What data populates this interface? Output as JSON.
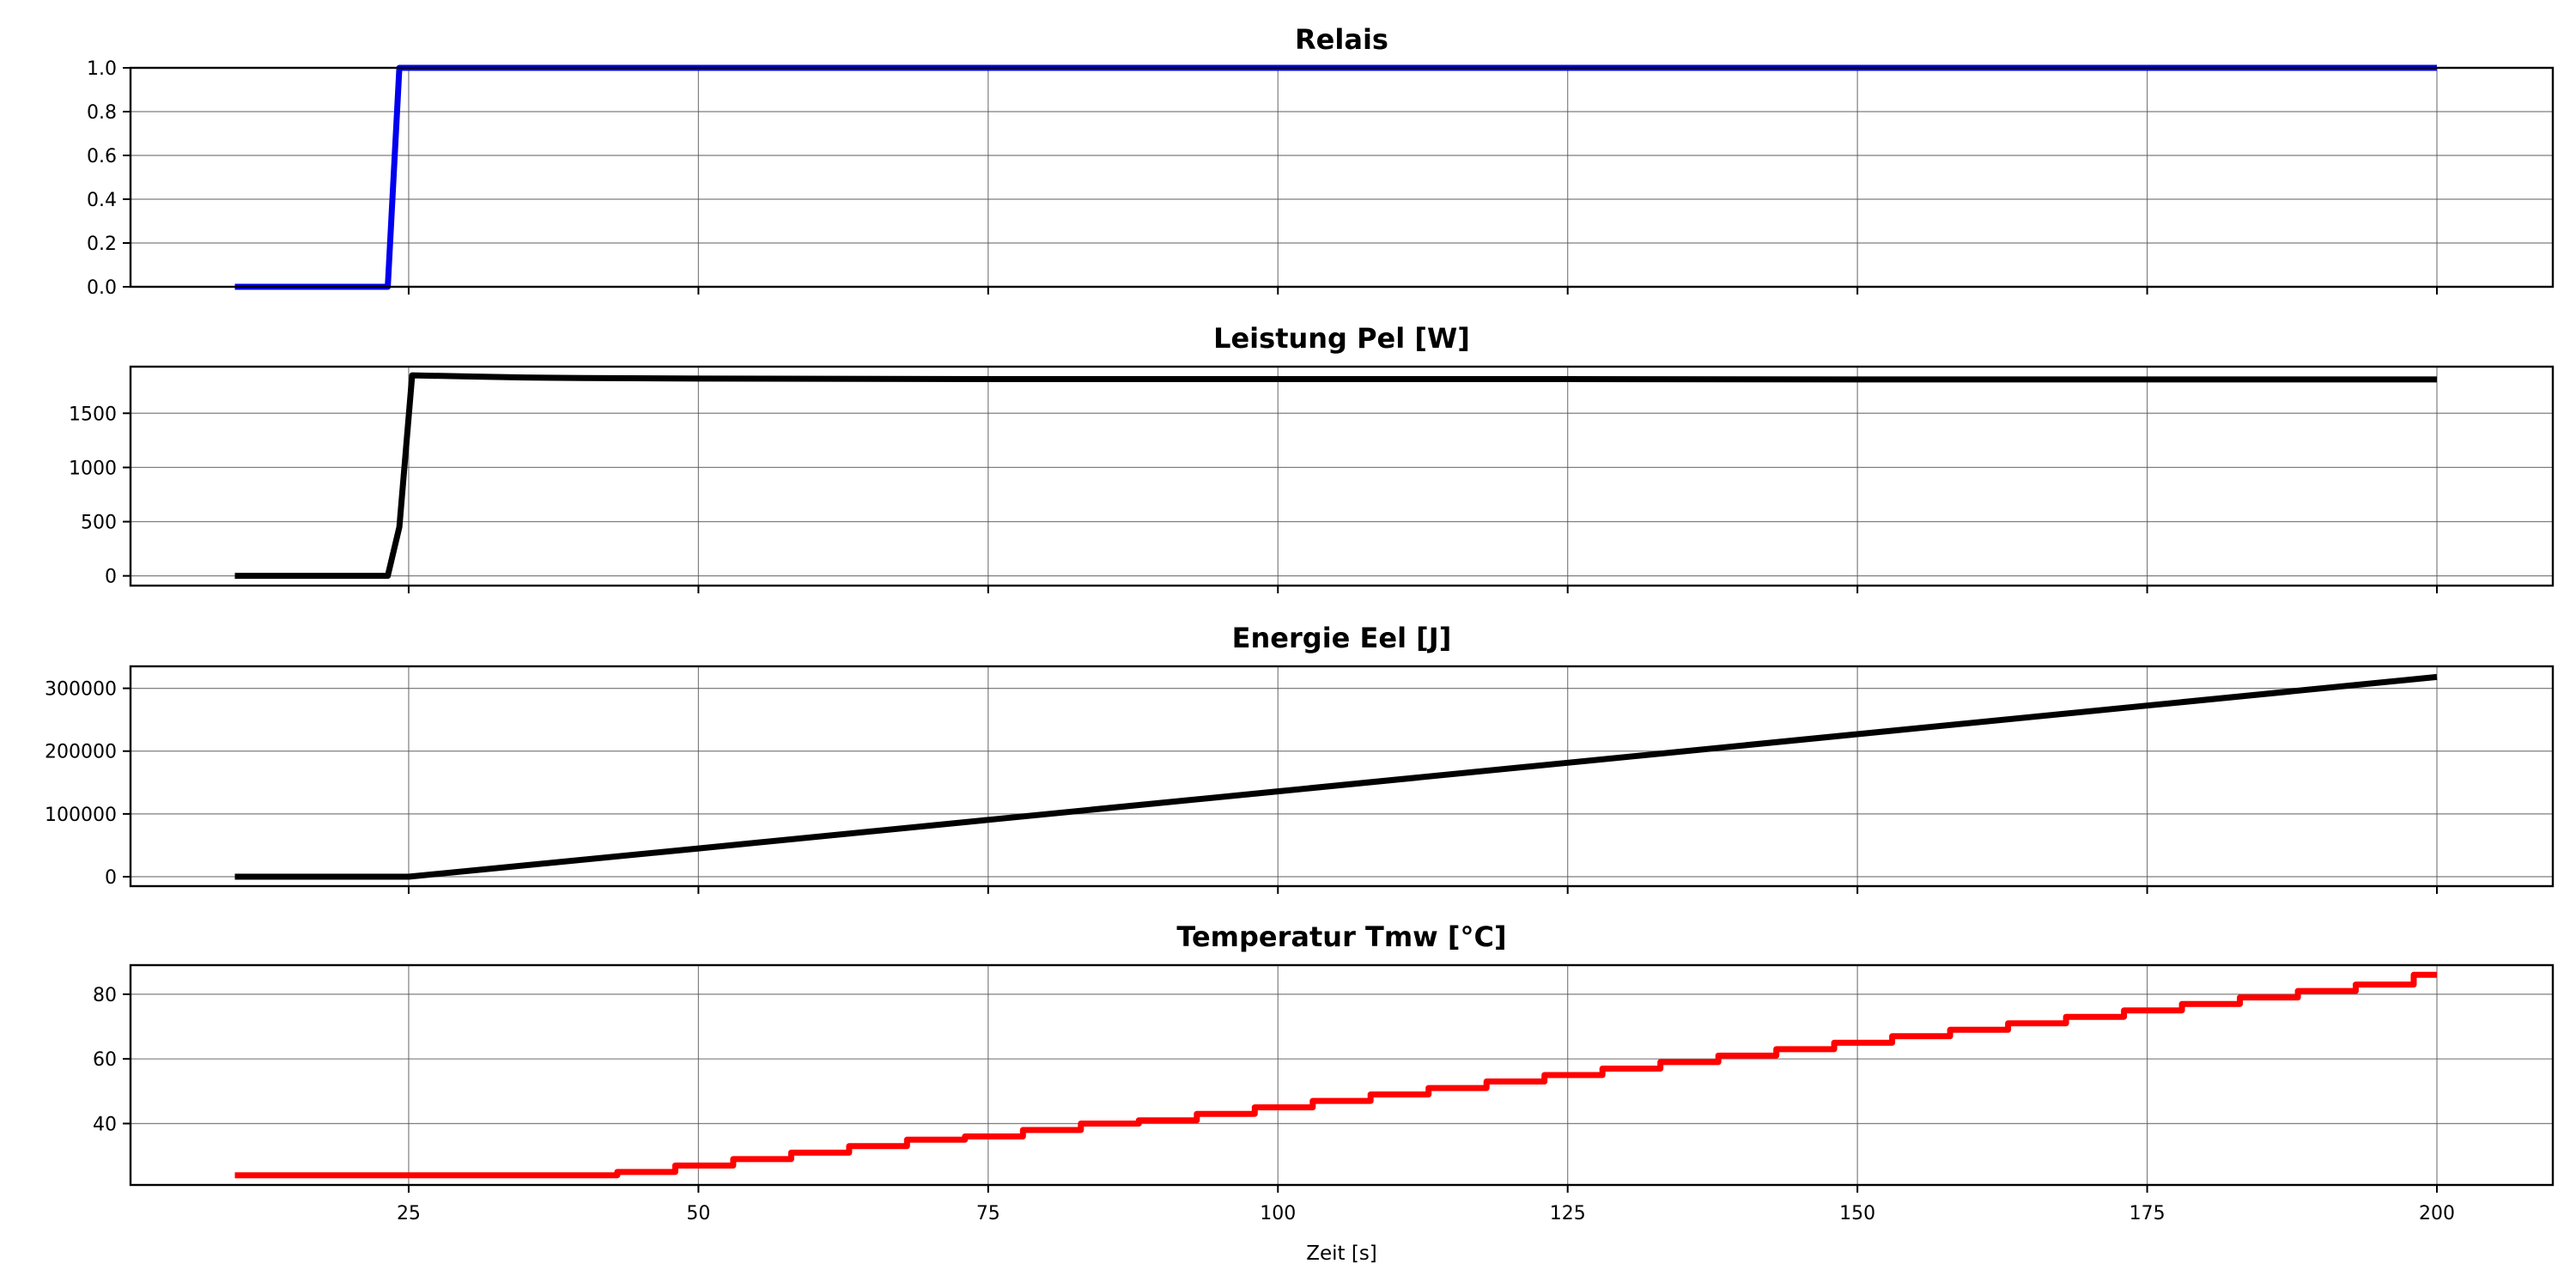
{
  "chart_data": [
    {
      "type": "line",
      "title": "Relais",
      "xlabel": "",
      "ylabel": "",
      "xlim": [
        1.0,
        210.0
      ],
      "ylim": [
        0.0,
        1.0
      ],
      "xticks": [
        25,
        50,
        75,
        100,
        125,
        150,
        175,
        200
      ],
      "yticks": [
        0.0,
        0.2,
        0.4,
        0.6,
        0.8,
        1.0
      ],
      "ytick_labels": [
        "0.0",
        "0.2",
        "0.4",
        "0.6",
        "0.8",
        "1.0"
      ],
      "show_xtick_labels": false,
      "grid": true,
      "series": [
        {
          "color": "#0000ee",
          "x": [
            10,
            23.2,
            24.2,
            25,
            200
          ],
          "y": [
            0,
            0,
            1,
            1,
            1
          ]
        }
      ]
    },
    {
      "type": "line",
      "title": "Leistung Pel [W]",
      "xlabel": "",
      "ylabel": "",
      "xlim": [
        1.0,
        210.0
      ],
      "ylim": [
        -90,
        1930
      ],
      "xticks": [
        25,
        50,
        75,
        100,
        125,
        150,
        175,
        200
      ],
      "yticks": [
        0,
        500,
        1000,
        1500
      ],
      "ytick_labels": [
        "0",
        "500",
        "1000",
        "1500"
      ],
      "show_xtick_labels": false,
      "grid": true,
      "series": [
        {
          "color": "#000000",
          "x": [
            10,
            23.2,
            24.2,
            25.3,
            30,
            35,
            40,
            50,
            60,
            75,
            100,
            125,
            150,
            175,
            200
          ],
          "y": [
            0,
            0,
            450,
            1850,
            1840,
            1830,
            1825,
            1820,
            1818,
            1815,
            1815,
            1815,
            1812,
            1812,
            1812
          ]
        }
      ]
    },
    {
      "type": "line",
      "title": "Energie Eel [J]",
      "xlabel": "",
      "ylabel": "",
      "xlim": [
        1.0,
        210.0
      ],
      "ylim": [
        -15000,
        335000
      ],
      "xticks": [
        25,
        50,
        75,
        100,
        125,
        150,
        175,
        200
      ],
      "yticks": [
        0,
        100000,
        200000,
        300000
      ],
      "ytick_labels": [
        "0",
        "100000",
        "200000",
        "300000"
      ],
      "show_xtick_labels": false,
      "grid": true,
      "series": [
        {
          "color": "#000000",
          "x": [
            10,
            25,
            50,
            75,
            100,
            125,
            150,
            175,
            200
          ],
          "y": [
            0,
            0,
            45000,
            90500,
            136000,
            181500,
            227000,
            272500,
            318000
          ]
        }
      ]
    },
    {
      "type": "line",
      "title": "Temperatur Tmw [°C]",
      "xlabel": "Zeit [s]",
      "ylabel": "",
      "xlim": [
        1.0,
        210.0
      ],
      "ylim": [
        21,
        89
      ],
      "xticks": [
        25,
        50,
        75,
        100,
        125,
        150,
        175,
        200
      ],
      "yticks": [
        40,
        60,
        80
      ],
      "ytick_labels": [
        "40",
        "60",
        "80"
      ],
      "show_xtick_labels": true,
      "grid": true,
      "series": [
        {
          "color": "#ff0000",
          "step": true,
          "x": [
            10,
            38,
            43,
            48,
            53,
            58,
            63,
            68,
            73,
            78,
            83,
            88,
            93,
            98,
            103,
            108,
            113,
            118,
            123,
            128,
            133,
            138,
            143,
            148,
            153,
            158,
            163,
            168,
            173,
            178,
            183,
            188,
            193,
            198,
            200
          ],
          "y": [
            24,
            24,
            25,
            27,
            29,
            31,
            33,
            35,
            36,
            38,
            40,
            41,
            43,
            45,
            47,
            49,
            51,
            53,
            55,
            57,
            59,
            61,
            63,
            65,
            67,
            69,
            71,
            73,
            75,
            77,
            79,
            81,
            83,
            86,
            86
          ]
        }
      ]
    }
  ]
}
